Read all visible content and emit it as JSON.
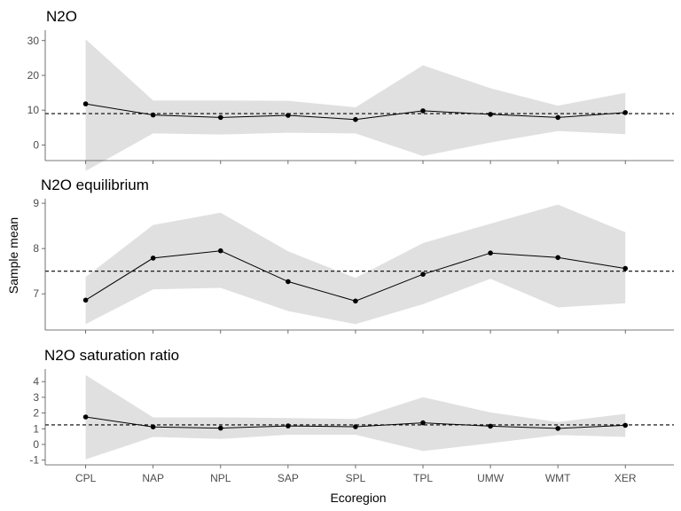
{
  "chart_data": {
    "type": "line",
    "ylabel": "Sample mean",
    "xlabel": "Ecoregion",
    "categories": [
      "CPL",
      "NAP",
      "NPL",
      "SAP",
      "SPL",
      "TPL",
      "UMW",
      "WMT",
      "XER"
    ],
    "colors": {
      "ribbon": "#e0e0e0",
      "line": "#000000",
      "axis": "#4d4d4d"
    },
    "panels": [
      {
        "title": "N2O",
        "ylim": [
          -4.5,
          33
        ],
        "yticks": [
          0,
          10,
          20,
          30
        ],
        "ref_line": 9,
        "series": [
          {
            "mean": [
              11.8,
              8.6,
              7.9,
              8.5,
              7.3,
              9.8,
              8.8,
              7.9,
              9.3
            ],
            "lower": [
              -7.5,
              3.3,
              3.0,
              3.5,
              3.3,
              -3.2,
              0.7,
              4.0,
              3.1
            ],
            "upper": [
              30.4,
              12.8,
              12.8,
              12.7,
              10.8,
              22.9,
              16.3,
              11.3,
              15.0
            ]
          }
        ]
      },
      {
        "title": "N2O equilibrium",
        "ylim": [
          6.2,
          9.1
        ],
        "yticks": [
          7,
          8,
          9
        ],
        "ref_line": 7.5,
        "series": [
          {
            "mean": [
              6.86,
              7.79,
              7.95,
              7.27,
              6.84,
              7.43,
              7.9,
              7.8,
              7.56
            ],
            "lower": [
              6.33,
              7.1,
              7.13,
              6.62,
              6.33,
              6.77,
              7.33,
              6.7,
              6.79
            ],
            "upper": [
              7.37,
              8.52,
              8.79,
              7.94,
              7.35,
              8.12,
              8.55,
              8.97,
              8.36
            ]
          }
        ]
      },
      {
        "title": "N2O saturation ratio",
        "ylim": [
          -1.3,
          4.8
        ],
        "yticks": [
          -1,
          0,
          1,
          2,
          3,
          4
        ],
        "ref_line": 1.25,
        "series": [
          {
            "mean": [
              1.75,
              1.12,
              1.04,
              1.18,
              1.13,
              1.38,
              1.16,
              1.02,
              1.22
            ],
            "lower": [
              -0.95,
              0.48,
              0.35,
              0.62,
              0.62,
              -0.42,
              0.08,
              0.6,
              0.48
            ],
            "upper": [
              4.42,
              1.72,
              1.72,
              1.68,
              1.62,
              3.01,
              2.04,
              1.43,
              1.95
            ]
          }
        ]
      }
    ]
  }
}
